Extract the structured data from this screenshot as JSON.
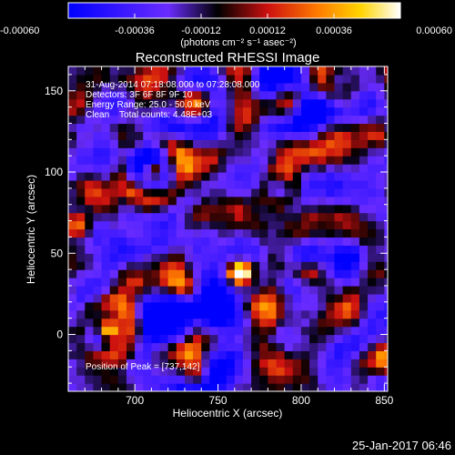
{
  "colorbar": {
    "ticks": [
      "-0.00060",
      "-0.00036",
      "-0.00012",
      "0.00012",
      "0.00036",
      "0.00060"
    ],
    "tick_values": [
      -0.0006,
      -0.00036,
      -0.00012,
      0.00012,
      0.00036,
      0.0006
    ],
    "range": [
      -0.0006,
      0.0006
    ],
    "units_label": "(photons cm⁻² s⁻¹ asec⁻²)",
    "colors": [
      "#0000ff",
      "#6a2cff",
      "#000000",
      "#cc1010",
      "#ff7a00",
      "#ffd400",
      "#ffffff"
    ]
  },
  "chart_data": {
    "type": "heatmap",
    "title": "Reconstructed RHESSI Image",
    "xlabel": "Heliocentric X (arcsec)",
    "ylabel": "Heliocentric Y (arcsec)",
    "xlim": [
      660,
      852
    ],
    "ylim": [
      -35,
      165
    ],
    "xticks": [
      700,
      750,
      800,
      850
    ],
    "yticks": [
      0,
      50,
      100,
      150
    ],
    "x_tick_labels": [
      "700",
      "750",
      "800",
      "850"
    ],
    "y_tick_labels": [
      "0",
      "50",
      "100",
      "150"
    ],
    "value_range": [
      -0.0006,
      0.0006
    ],
    "peak_position": [
      737,
      142
    ],
    "annotations": [
      "31-Aug-2014 07:18:08.000 to 07:28:08.000",
      "Detectors: 3F 6F 8F 9F 10",
      "Energy Range: 25.0 - 50.0 keV",
      "Clean    Total counts: 4.48E+03",
      "Position of Peak = [737,142]"
    ]
  },
  "footer": {
    "timestamp": "25-Jan-2017 06:46"
  }
}
